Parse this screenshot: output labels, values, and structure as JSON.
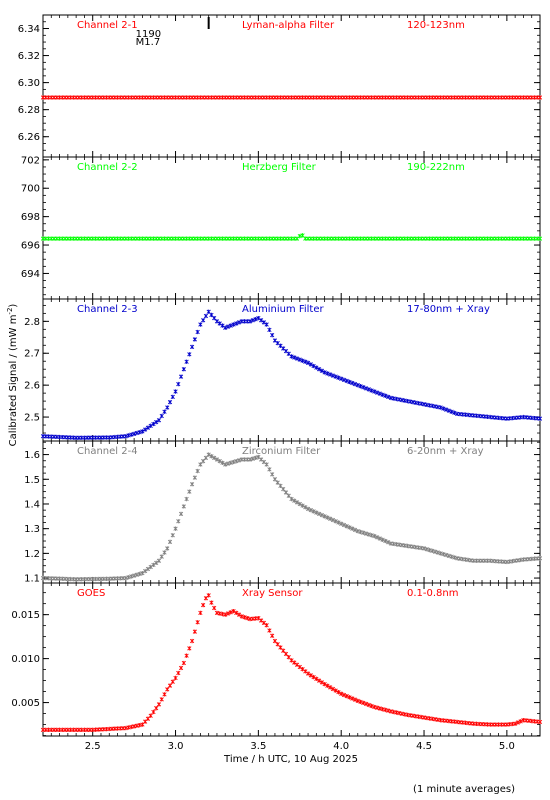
{
  "figure": {
    "xlabel": "Time / h UTC, 10 Aug 2025",
    "ylabel": "Calibrated Signal / (mW m",
    "ylabel_sup": "-2",
    "ylabel_close": ")",
    "footnote": "(1 minute averages)",
    "xlim": [
      2.2,
      5.2
    ],
    "xticks": [
      2.5,
      3.0,
      3.5,
      4.0,
      4.5,
      5.0
    ],
    "xtick_labels": [
      "2.5",
      "3.0",
      "3.5",
      "4.0",
      "4.5",
      "5.0"
    ]
  },
  "chart_data": [
    {
      "type": "scatter",
      "channel": "Channel 2-1",
      "filter": "Lyman-alpha Filter",
      "band": "120-123nm",
      "color": "#ff0000",
      "ylim": [
        6.245,
        6.35
      ],
      "yticks": [
        6.26,
        6.28,
        6.3,
        6.32,
        6.34
      ],
      "ytick_labels": [
        "6.26",
        "6.28",
        "6.30",
        "6.32",
        "6.34"
      ],
      "annotation": {
        "time": 3.2,
        "text_top": "1190",
        "text_bottom": "M1.7"
      },
      "x": [
        2.2,
        5.2
      ],
      "y": [
        6.289,
        6.289
      ]
    },
    {
      "type": "scatter",
      "channel": "Channel 2-2",
      "filter": "Herzberg Filter",
      "band": "190-222nm",
      "color": "#00ff00",
      "ylim": [
        692.2,
        702.2
      ],
      "yticks": [
        694,
        696,
        698,
        700,
        702
      ],
      "ytick_labels": [
        "694",
        "696",
        "698",
        "700",
        "702"
      ],
      "x": [
        2.2,
        3.74,
        3.76,
        3.78,
        5.2
      ],
      "y": [
        696.45,
        696.45,
        696.8,
        696.45,
        696.45
      ]
    },
    {
      "type": "scatter",
      "channel": "Channel 2-3",
      "filter": "Aluminium Filter",
      "band": "17-80nm + Xray",
      "color": "#0000cc",
      "ylim": [
        2.425,
        2.87
      ],
      "yticks": [
        2.5,
        2.6,
        2.7,
        2.8
      ],
      "ytick_labels": [
        "2.5",
        "2.6",
        "2.7",
        "2.8"
      ],
      "x": [
        2.2,
        2.4,
        2.6,
        2.7,
        2.8,
        2.9,
        2.95,
        3.0,
        3.05,
        3.1,
        3.15,
        3.2,
        3.25,
        3.3,
        3.35,
        3.4,
        3.45,
        3.5,
        3.55,
        3.6,
        3.7,
        3.8,
        3.9,
        4.0,
        4.1,
        4.2,
        4.3,
        4.4,
        4.5,
        4.6,
        4.7,
        4.8,
        4.9,
        5.0,
        5.1,
        5.2
      ],
      "y": [
        2.44,
        2.435,
        2.436,
        2.44,
        2.455,
        2.49,
        2.53,
        2.58,
        2.65,
        2.72,
        2.79,
        2.83,
        2.8,
        2.78,
        2.79,
        2.8,
        2.8,
        2.81,
        2.79,
        2.74,
        2.69,
        2.67,
        2.64,
        2.62,
        2.6,
        2.58,
        2.56,
        2.55,
        2.54,
        2.53,
        2.51,
        2.505,
        2.5,
        2.495,
        2.5,
        2.495
      ]
    },
    {
      "type": "scatter",
      "channel": "Channel 2-4",
      "filter": "Zirconium Filter",
      "band": "6-20nm + Xray",
      "color": "#808080",
      "ylim": [
        1.08,
        1.655
      ],
      "yticks": [
        1.1,
        1.2,
        1.3,
        1.4,
        1.5,
        1.6
      ],
      "ytick_labels": [
        "1.1",
        "1.2",
        "1.3",
        "1.4",
        "1.5",
        "1.6"
      ],
      "x": [
        2.2,
        2.4,
        2.6,
        2.7,
        2.8,
        2.9,
        2.95,
        3.0,
        3.05,
        3.1,
        3.15,
        3.2,
        3.25,
        3.3,
        3.35,
        3.4,
        3.45,
        3.5,
        3.55,
        3.6,
        3.7,
        3.8,
        3.9,
        4.0,
        4.1,
        4.2,
        4.3,
        4.4,
        4.5,
        4.6,
        4.7,
        4.8,
        4.9,
        5.0,
        5.1,
        5.2
      ],
      "y": [
        1.1,
        1.095,
        1.097,
        1.1,
        1.12,
        1.17,
        1.22,
        1.3,
        1.39,
        1.48,
        1.56,
        1.6,
        1.58,
        1.56,
        1.57,
        1.58,
        1.58,
        1.59,
        1.56,
        1.5,
        1.42,
        1.38,
        1.35,
        1.32,
        1.29,
        1.27,
        1.24,
        1.23,
        1.22,
        1.2,
        1.18,
        1.17,
        1.17,
        1.165,
        1.175,
        1.18
      ]
    },
    {
      "type": "scatter",
      "channel": "GOES",
      "filter": "Xray Sensor",
      "band": "0.1-0.8nm",
      "color": "#ff0000",
      "ylim": [
        0.0012,
        0.0186
      ],
      "yticks": [
        0.005,
        0.01,
        0.015
      ],
      "ytick_labels": [
        "0.005",
        "0.010",
        "0.015"
      ],
      "x": [
        2.2,
        2.5,
        2.7,
        2.8,
        2.85,
        2.9,
        2.95,
        3.0,
        3.05,
        3.1,
        3.15,
        3.18,
        3.2,
        3.22,
        3.25,
        3.3,
        3.35,
        3.4,
        3.45,
        3.5,
        3.55,
        3.6,
        3.7,
        3.8,
        3.9,
        4.0,
        4.1,
        4.2,
        4.3,
        4.4,
        4.5,
        4.6,
        4.7,
        4.8,
        4.9,
        5.0,
        5.05,
        5.1,
        5.2
      ],
      "y": [
        0.0019,
        0.0019,
        0.0021,
        0.0025,
        0.0035,
        0.0048,
        0.0065,
        0.0078,
        0.0095,
        0.012,
        0.0152,
        0.0168,
        0.0172,
        0.0162,
        0.0152,
        0.015,
        0.0154,
        0.0148,
        0.0145,
        0.0146,
        0.0138,
        0.012,
        0.0098,
        0.0083,
        0.0071,
        0.006,
        0.0052,
        0.0045,
        0.004,
        0.0036,
        0.0033,
        0.003,
        0.0028,
        0.0026,
        0.0025,
        0.0025,
        0.0026,
        0.003,
        0.0028
      ]
    }
  ]
}
